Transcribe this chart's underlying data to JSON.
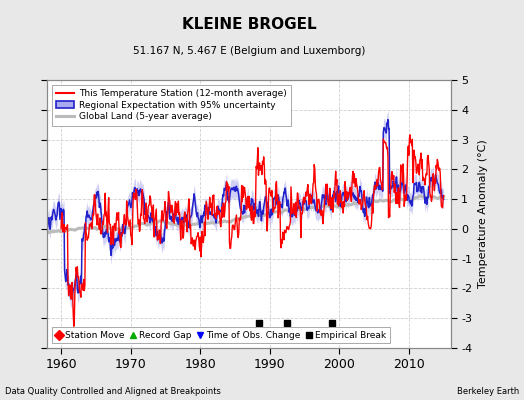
{
  "title": "KLEINE BROGEL",
  "subtitle": "51.167 N, 5.467 E (Belgium and Luxemborg)",
  "ylabel": "Temperature Anomaly (°C)",
  "xlabel_left": "Data Quality Controlled and Aligned at Breakpoints",
  "xlabel_right": "Berkeley Earth",
  "ylim": [
    -4,
    5
  ],
  "xlim": [
    1958,
    2016
  ],
  "xticks": [
    1960,
    1970,
    1980,
    1990,
    2000,
    2010
  ],
  "yticks": [
    -4,
    -3,
    -2,
    -1,
    0,
    1,
    2,
    3,
    4,
    5
  ],
  "background_color": "#e8e8e8",
  "plot_background_color": "#ffffff",
  "grid_color": "#d0d0d0",
  "empirical_breaks": [
    1988.5,
    1992.5,
    1999.0
  ],
  "legend1_items": [
    {
      "label": "This Temperature Station (12-month average)",
      "color": "#ff0000",
      "lw": 1.5
    },
    {
      "label": "Regional Expectation with 95% uncertainty",
      "color": "#2222cc",
      "lw": 1.5
    },
    {
      "label": "Global Land (5-year average)",
      "color": "#aaaaaa",
      "lw": 2.5
    }
  ],
  "legend2_items": [
    {
      "label": "Station Move",
      "marker": "D",
      "color": "#ff0000"
    },
    {
      "label": "Record Gap",
      "marker": "^",
      "color": "#00aa00"
    },
    {
      "label": "Time of Obs. Change",
      "marker": "v",
      "color": "#0000ff"
    },
    {
      "label": "Empirical Break",
      "marker": "s",
      "color": "#000000"
    }
  ]
}
